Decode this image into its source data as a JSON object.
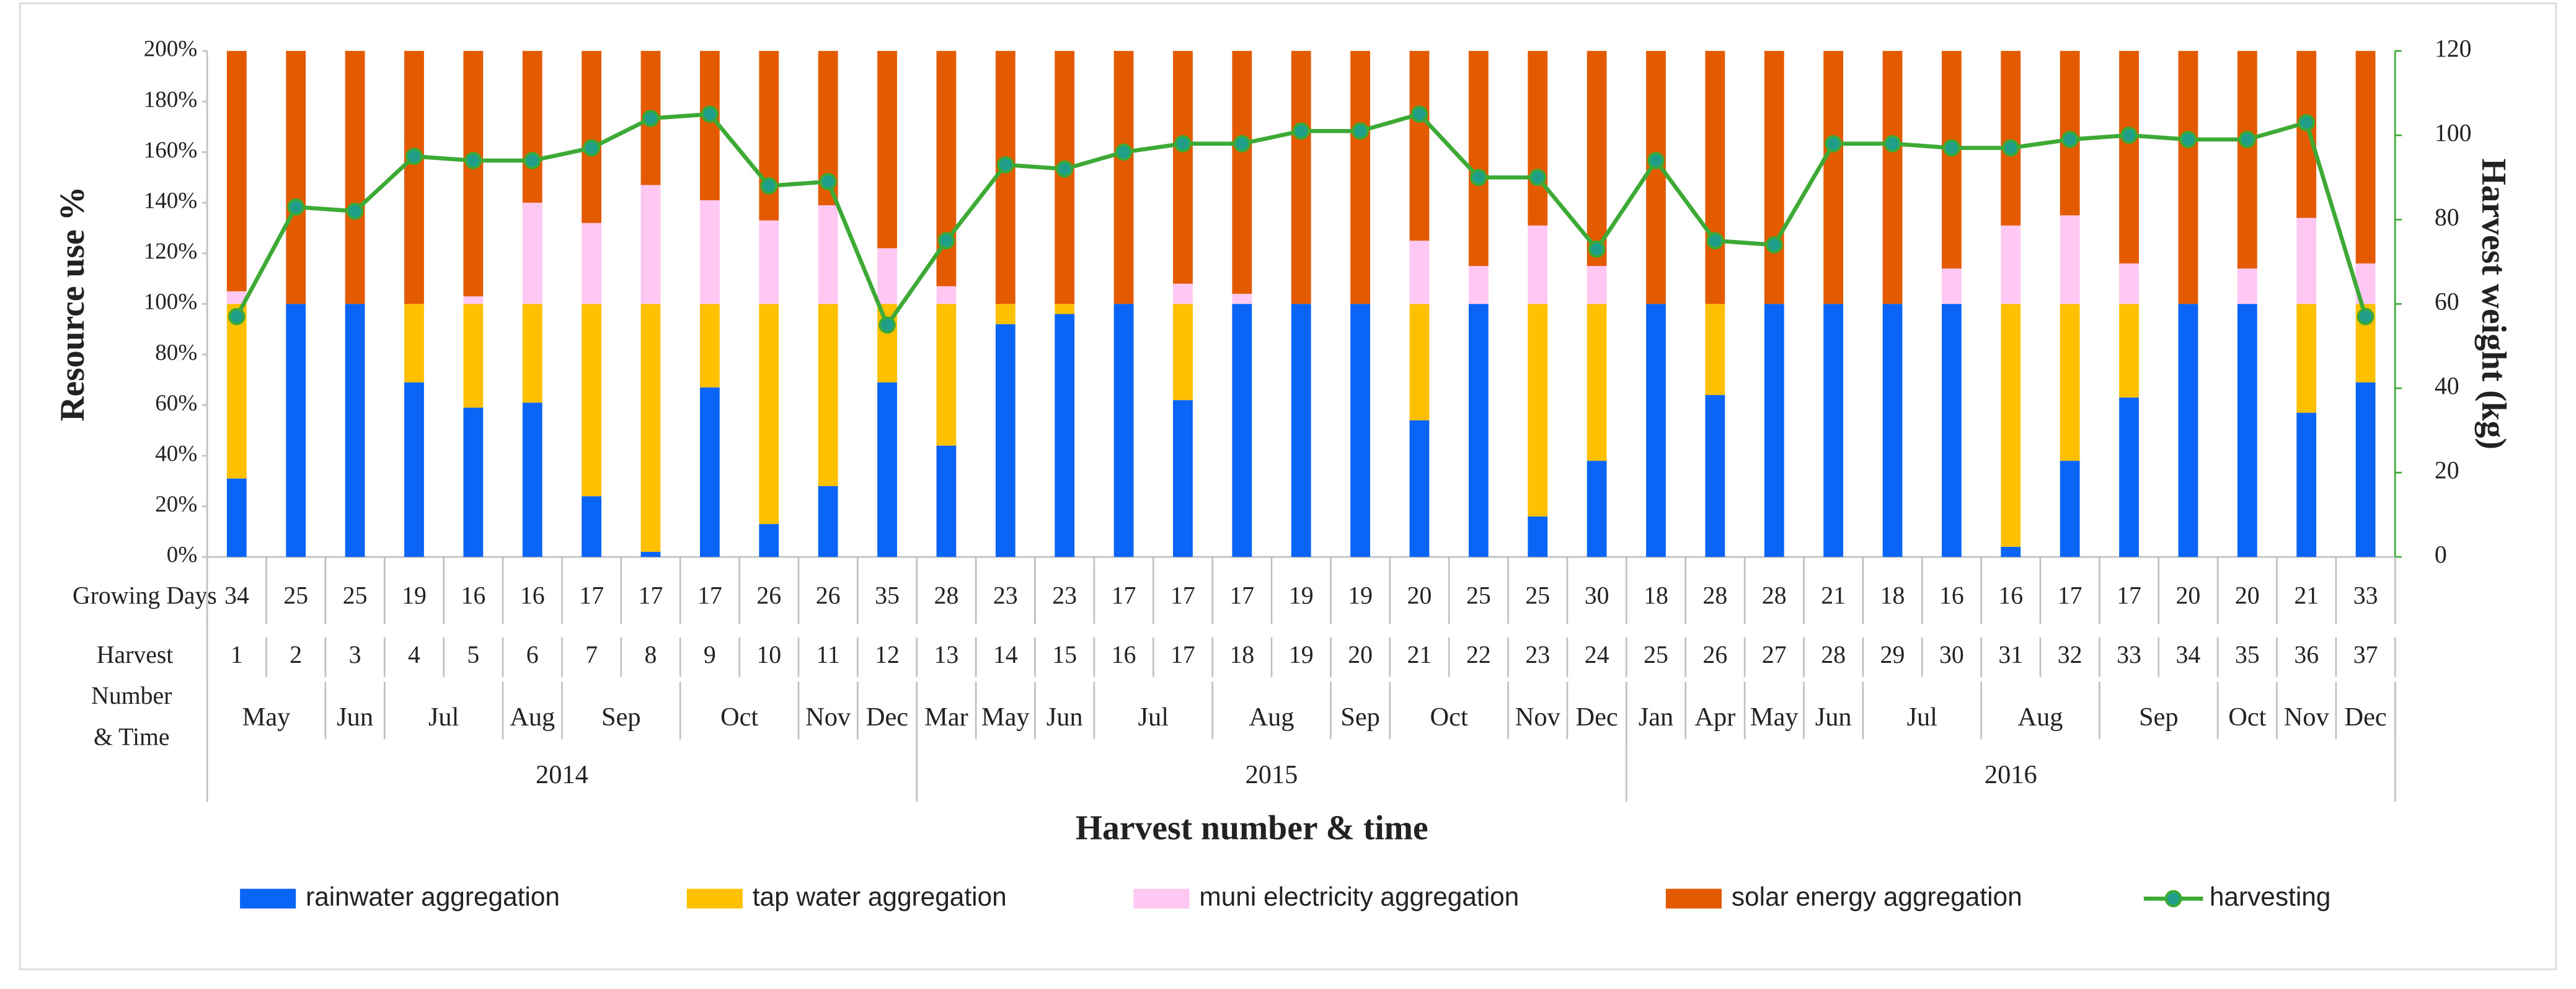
{
  "chart_data": {
    "type": "bar",
    "stacked": true,
    "y_label": "Resource use %",
    "y2_label": "Harvest weight (kg)",
    "x_label": "Harvest number & time",
    "row_labels": {
      "growing_days": "Growing Days",
      "harvest": [
        "Harvest",
        "Number",
        "& Time"
      ]
    },
    "categories": [
      "1",
      "2",
      "3",
      "4",
      "5",
      "6",
      "7",
      "8",
      "9",
      "10",
      "11",
      "12",
      "13",
      "14",
      "15",
      "16",
      "17",
      "18",
      "19",
      "20",
      "21",
      "22",
      "23",
      "24",
      "25",
      "26",
      "27",
      "28",
      "29",
      "30",
      "31",
      "32",
      "33",
      "34",
      "35",
      "36",
      "37"
    ],
    "growing_days": [
      34,
      25,
      25,
      19,
      16,
      16,
      17,
      17,
      17,
      26,
      26,
      35,
      28,
      23,
      23,
      17,
      17,
      17,
      19,
      19,
      20,
      25,
      25,
      30,
      18,
      28,
      28,
      21,
      18,
      16,
      16,
      17,
      17,
      20,
      20,
      21,
      33
    ],
    "months": [
      {
        "label": "May",
        "span": 2
      },
      {
        "label": "Jun",
        "span": 1
      },
      {
        "label": "Jul",
        "span": 2
      },
      {
        "label": "Aug",
        "span": 1
      },
      {
        "label": "Sep",
        "span": 2
      },
      {
        "label": "Oct",
        "span": 2
      },
      {
        "label": "Nov",
        "span": 1
      },
      {
        "label": "Dec",
        "span": 1
      },
      {
        "label": "Mar",
        "span": 1
      },
      {
        "label": "May",
        "span": 1
      },
      {
        "label": "Jun",
        "span": 1
      },
      {
        "label": "Jul",
        "span": 2
      },
      {
        "label": "Aug",
        "span": 2
      },
      {
        "label": "Sep",
        "span": 1
      },
      {
        "label": "Oct",
        "span": 2
      },
      {
        "label": "Nov",
        "span": 1
      },
      {
        "label": "Dec",
        "span": 1
      },
      {
        "label": "Jan",
        "span": 1
      },
      {
        "label": "Apr",
        "span": 1
      },
      {
        "label": "May",
        "span": 1
      },
      {
        "label": "Jun",
        "span": 1
      },
      {
        "label": "Jul",
        "span": 2
      },
      {
        "label": "Aug",
        "span": 2
      },
      {
        "label": "Sep",
        "span": 2
      },
      {
        "label": "Oct",
        "span": 1
      },
      {
        "label": "Nov",
        "span": 1
      },
      {
        "label": "Dec",
        "span": 1
      }
    ],
    "years": [
      {
        "label": "2014",
        "span": 12
      },
      {
        "label": "2015",
        "span": 12
      },
      {
        "label": "2016",
        "span": 13
      }
    ],
    "series": [
      {
        "name": "rainwater aggregation",
        "color": "#0a64f5",
        "values": [
          31,
          100,
          100,
          69,
          59,
          61,
          24,
          2,
          67,
          13,
          28,
          69,
          44,
          92,
          96,
          100,
          62,
          100,
          100,
          100,
          54,
          100,
          16,
          38,
          100,
          64,
          100,
          100,
          100,
          100,
          4,
          38,
          63,
          100,
          100,
          57,
          69
        ]
      },
      {
        "name": "tap water aggregation",
        "color": "#ffc000",
        "values": [
          69,
          0,
          0,
          31,
          41,
          39,
          76,
          98,
          33,
          87,
          72,
          31,
          56,
          8,
          4,
          0,
          38,
          0,
          0,
          0,
          46,
          0,
          84,
          62,
          0,
          36,
          0,
          0,
          0,
          0,
          96,
          62,
          37,
          0,
          0,
          43,
          31
        ]
      },
      {
        "name": "muni electricity aggregation",
        "color": "#ffc8f2",
        "values": [
          5,
          0,
          0,
          0,
          3,
          40,
          32,
          47,
          41,
          33,
          39,
          22,
          7,
          0,
          0,
          0,
          8,
          4,
          0,
          0,
          25,
          15,
          31,
          15,
          0,
          0,
          0,
          0,
          0,
          14,
          31,
          35,
          16,
          0,
          14,
          34,
          16
        ]
      },
      {
        "name": "solar energy aggregation",
        "color": "#e35a00",
        "values": [
          95,
          100,
          100,
          100,
          97,
          60,
          68,
          53,
          59,
          67,
          61,
          78,
          93,
          100,
          100,
          100,
          92,
          96,
          100,
          100,
          75,
          85,
          69,
          85,
          100,
          100,
          100,
          100,
          100,
          86,
          69,
          65,
          84,
          100,
          86,
          66,
          84
        ]
      },
      {
        "name": "harvesting",
        "type": "line",
        "axis": "y2",
        "color": "#3daa35",
        "marker_color": "#1f9e8a",
        "values": [
          57,
          83,
          82,
          95,
          94,
          94,
          97,
          104,
          105,
          88,
          89,
          55,
          75,
          93,
          92,
          96,
          98,
          98,
          101,
          101,
          105,
          90,
          90,
          73,
          94,
          75,
          74,
          98,
          98,
          97,
          97,
          99,
          100,
          99,
          99,
          103,
          57
        ]
      }
    ],
    "ylim": [
      0,
      200
    ],
    "yticks": [
      {
        "value": 0,
        "label": "0%"
      },
      {
        "value": 20,
        "label": "20%"
      },
      {
        "value": 40,
        "label": "40%"
      },
      {
        "value": 60,
        "label": "60%"
      },
      {
        "value": 80,
        "label": "80%"
      },
      {
        "value": 100,
        "label": "100%"
      },
      {
        "value": 120,
        "label": "120%"
      },
      {
        "value": 140,
        "label": "140%"
      },
      {
        "value": 160,
        "label": "160%"
      },
      {
        "value": 180,
        "label": "180%"
      },
      {
        "value": 200,
        "label": "200%"
      }
    ],
    "y2lim": [
      0,
      120
    ],
    "y2ticks": [
      0,
      20,
      40,
      60,
      80,
      100,
      120
    ],
    "grid": false,
    "legend": "bottom"
  }
}
